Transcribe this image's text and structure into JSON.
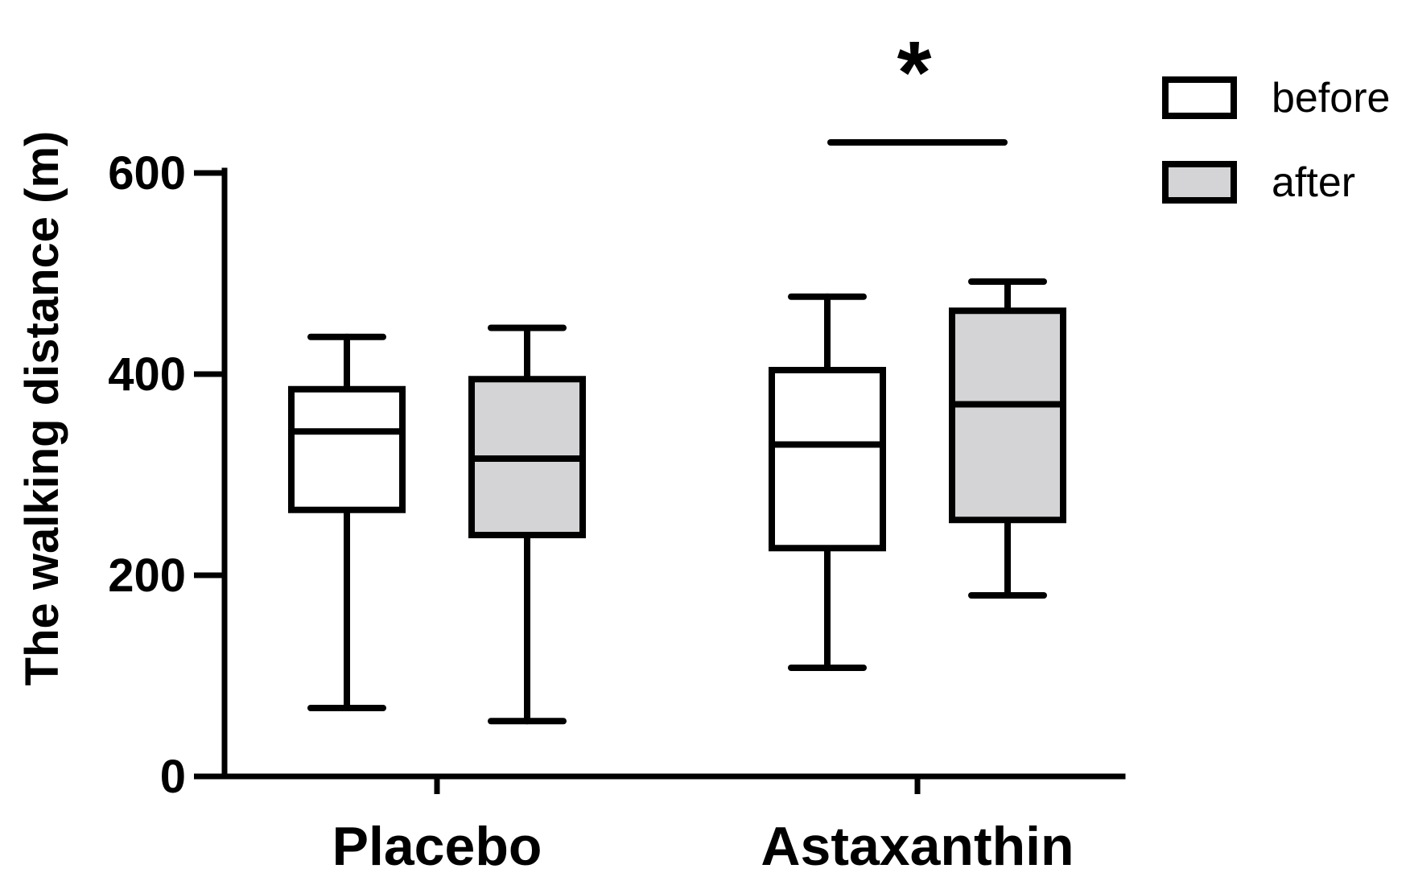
{
  "chart_data": {
    "type": "box",
    "ylabel": "The walking distance (m)",
    "ylim": [
      0,
      600
    ],
    "yticks": [
      0,
      200,
      400,
      600
    ],
    "categories": [
      "Placebo",
      "Astaxanthin"
    ],
    "series": [
      {
        "name": "before",
        "color": "#ffffff",
        "boxes": [
          {
            "min": 68,
            "q1": 265,
            "median": 343,
            "q3": 385,
            "max": 437
          },
          {
            "min": 108,
            "q1": 227,
            "median": 330,
            "q3": 404,
            "max": 477
          }
        ]
      },
      {
        "name": "after",
        "color": "#d4d4d6",
        "boxes": [
          {
            "min": 55,
            "q1": 240,
            "median": 316,
            "q3": 395,
            "max": 446
          },
          {
            "min": 180,
            "q1": 255,
            "median": 370,
            "q3": 463,
            "max": 492
          }
        ]
      }
    ],
    "annotations": [
      {
        "category": "Astaxanthin",
        "text": "*",
        "meaning": "significant difference before vs after"
      }
    ],
    "legend": {
      "position": "top-right"
    }
  }
}
